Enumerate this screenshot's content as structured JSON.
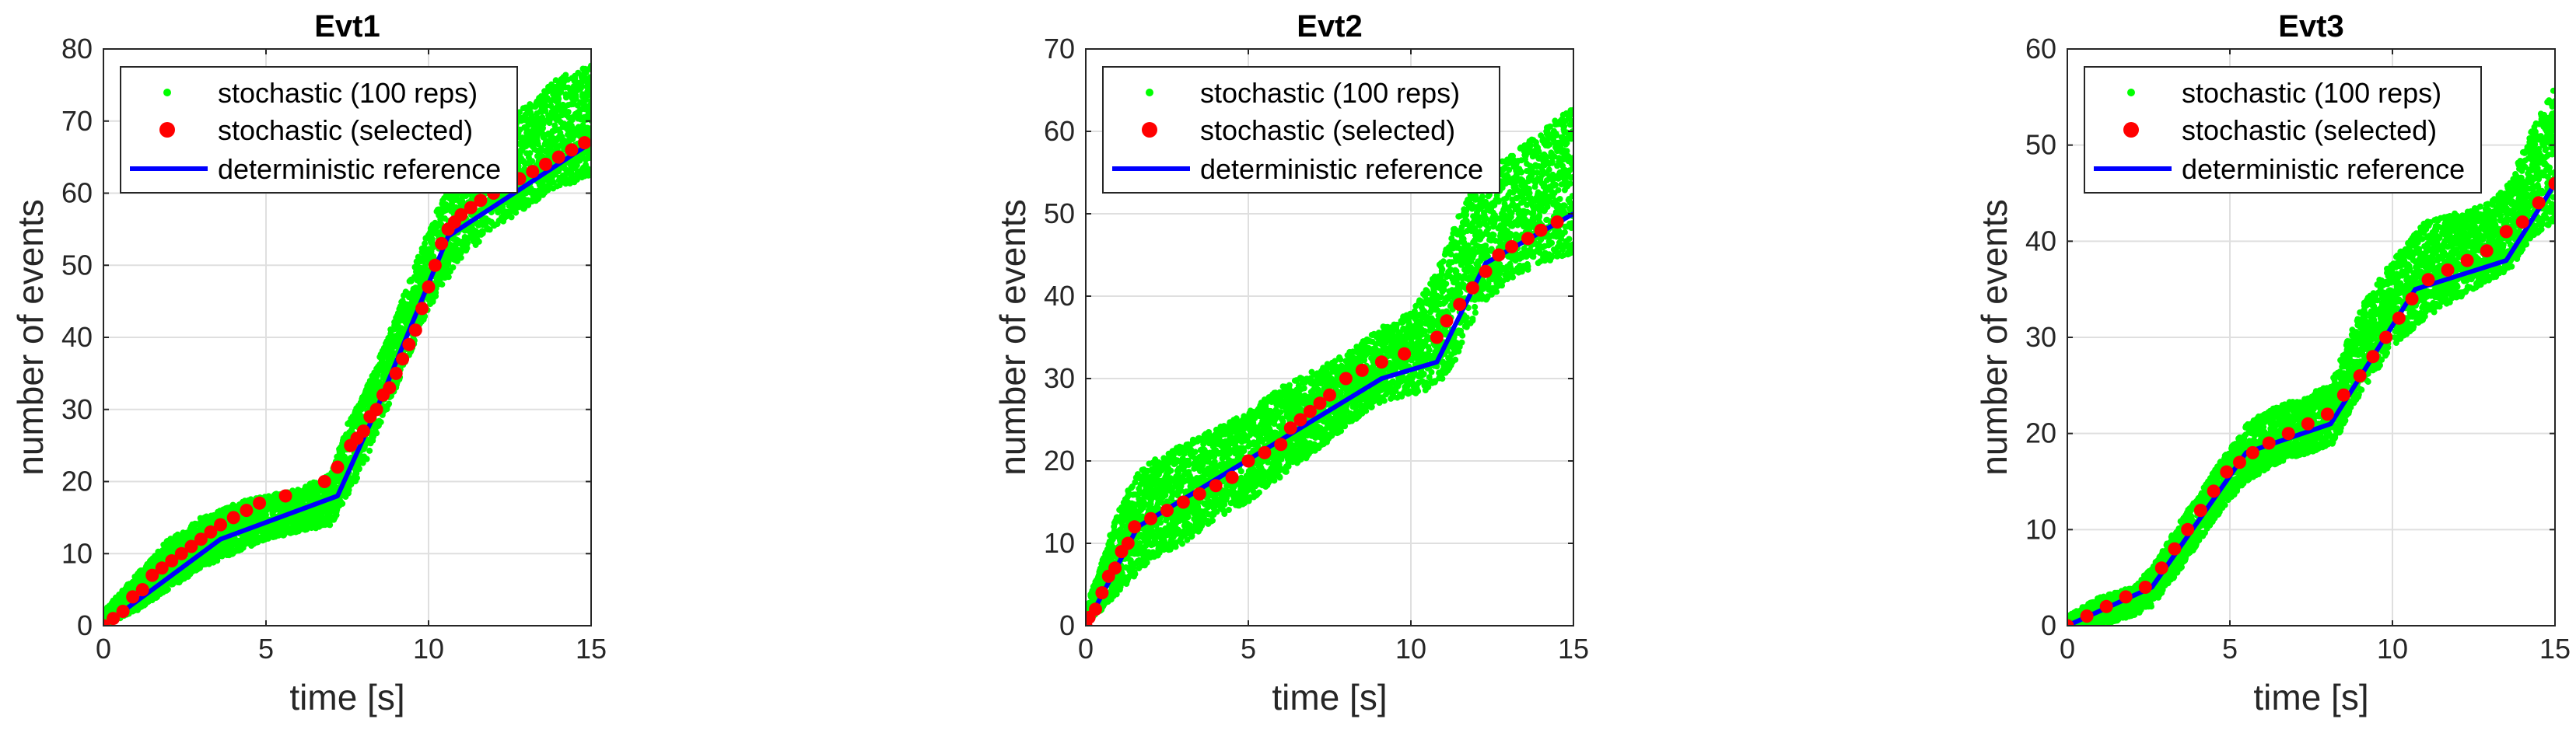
{
  "chart_data": [
    {
      "type": "scatter",
      "title": "Evt1",
      "xlabel": "time [s]",
      "ylabel": "number of events",
      "xlim": [
        0,
        15
      ],
      "ylim": [
        0,
        80
      ],
      "xticks": [
        0,
        5,
        10,
        15
      ],
      "yticks": [
        0,
        10,
        20,
        30,
        40,
        50,
        60,
        70,
        80
      ],
      "grid": true,
      "legend_position": "top-left",
      "legend": [
        "stochastic (100 reps)",
        "stochastic (selected)",
        "deterministic reference"
      ],
      "series": [
        {
          "name": "stochastic (100 reps)",
          "kind": "band",
          "color": "#00ff00",
          "x": [
            0,
            1,
            2,
            3,
            4,
            5,
            6,
            7,
            7.5,
            8,
            9,
            10,
            11,
            12,
            13,
            14,
            15
          ],
          "lower": [
            0,
            2,
            5,
            8,
            10,
            12,
            13,
            14,
            18,
            22,
            33,
            44,
            51,
            55,
            58,
            61,
            62
          ],
          "upper": [
            2,
            7,
            12,
            15,
            17,
            18,
            19,
            21,
            28,
            32,
            43,
            55,
            65,
            70,
            72,
            76,
            78
          ]
        },
        {
          "name": "stochastic (selected)",
          "kind": "markers",
          "color": "#ff0000",
          "x": [
            0,
            0.3,
            0.6,
            0.9,
            1.2,
            1.5,
            1.8,
            2.1,
            2.4,
            2.7,
            3.0,
            3.3,
            3.6,
            4.0,
            4.4,
            4.8,
            5.6,
            6.8,
            7.2,
            7.6,
            7.8,
            8.0,
            8.2,
            8.4,
            8.6,
            8.8,
            9.0,
            9.2,
            9.4,
            9.6,
            9.8,
            10.0,
            10.2,
            10.4,
            10.6,
            10.8,
            11.0,
            11.3,
            11.6,
            12.0,
            12.4,
            12.8,
            13.2,
            13.6,
            14.0,
            14.4,
            14.8
          ],
          "y": [
            0,
            1,
            2,
            4,
            5,
            7,
            8,
            9,
            10,
            11,
            12,
            13,
            14,
            15,
            16,
            17,
            18,
            20,
            22,
            25,
            26,
            27,
            29,
            30,
            32,
            33,
            35,
            37,
            39,
            41,
            44,
            47,
            50,
            53,
            55,
            56,
            57,
            58,
            59,
            60,
            61,
            62,
            63,
            64,
            65,
            66,
            67
          ]
        },
        {
          "name": "deterministic reference",
          "kind": "line",
          "color": "#0000ff",
          "x": [
            0,
            3.6,
            7.2,
            8.4,
            10.6,
            15
          ],
          "y": [
            0,
            12,
            18,
            30,
            54,
            67
          ]
        }
      ]
    },
    {
      "type": "scatter",
      "title": "Evt2",
      "xlabel": "time [s]",
      "ylabel": "number of events",
      "xlim": [
        0,
        15
      ],
      "ylim": [
        0,
        70
      ],
      "xticks": [
        0,
        5,
        10,
        15
      ],
      "yticks": [
        0,
        10,
        20,
        30,
        40,
        50,
        60,
        70
      ],
      "grid": true,
      "legend_position": "top-left",
      "legend": [
        "stochastic (100 reps)",
        "stochastic (selected)",
        "deterministic reference"
      ],
      "series": [
        {
          "name": "stochastic (100 reps)",
          "kind": "band",
          "color": "#00ff00",
          "x": [
            0,
            0.5,
            1,
            1.5,
            2,
            3,
            4,
            5,
            6,
            7,
            8,
            9,
            10,
            10.8,
            11.5,
            12,
            13,
            14,
            15
          ],
          "lower": [
            0,
            2,
            4,
            6,
            8,
            10,
            13,
            15,
            18,
            21,
            24,
            27,
            28,
            29,
            33,
            38,
            42,
            44,
            45
          ],
          "upper": [
            2,
            8,
            14,
            18,
            20,
            22,
            24,
            26,
            29,
            31,
            33,
            36,
            38,
            43,
            50,
            54,
            57,
            60,
            63
          ]
        },
        {
          "name": "stochastic (selected)",
          "kind": "markers",
          "color": "#ff0000",
          "x": [
            0,
            0.1,
            0.3,
            0.5,
            0.7,
            0.9,
            1.1,
            1.3,
            1.5,
            2.0,
            2.5,
            3.0,
            3.5,
            4.0,
            4.5,
            5.0,
            5.5,
            6.0,
            6.3,
            6.6,
            6.9,
            7.2,
            7.5,
            8.0,
            8.5,
            9.1,
            9.8,
            10.8,
            11.1,
            11.5,
            11.9,
            12.3,
            12.7,
            13.1,
            13.6,
            14.0,
            14.5
          ],
          "y": [
            0,
            1,
            2,
            4,
            6,
            7,
            9,
            10,
            12,
            13,
            14,
            15,
            16,
            17,
            18,
            20,
            21,
            22,
            24,
            25,
            26,
            27,
            28,
            30,
            31,
            32,
            33,
            35,
            37,
            39,
            41,
            43,
            45,
            46,
            47,
            48,
            49
          ]
        },
        {
          "name": "deterministic reference",
          "kind": "line",
          "color": "#0000ff",
          "x": [
            0,
            1.6,
            9.1,
            10.8,
            12.3,
            15
          ],
          "y": [
            0,
            12,
            30,
            32,
            44,
            50
          ]
        }
      ]
    },
    {
      "type": "scatter",
      "title": "Evt3",
      "xlabel": "time [s]",
      "ylabel": "number of events",
      "xlim": [
        0,
        15
      ],
      "ylim": [
        0,
        60
      ],
      "xticks": [
        0,
        5,
        10,
        15
      ],
      "yticks": [
        0,
        10,
        20,
        30,
        40,
        50,
        60
      ],
      "grid": true,
      "legend_position": "top-left",
      "legend": [
        "stochastic (100 reps)",
        "stochastic (selected)",
        "deterministic reference"
      ],
      "series": [
        {
          "name": "stochastic (100 reps)",
          "kind": "band",
          "color": "#00ff00",
          "x": [
            0,
            1,
            2,
            2.6,
            3.5,
            4.5,
            5.5,
            6.5,
            7.5,
            8.2,
            9,
            10,
            11,
            12,
            13,
            13.6,
            14.2,
            15
          ],
          "lower": [
            0,
            0,
            1,
            2,
            6,
            11,
            15,
            17,
            18,
            19,
            24,
            29,
            32,
            34,
            36,
            37,
            40,
            42
          ],
          "upper": [
            1,
            3,
            4,
            6,
            11,
            16,
            21,
            23,
            24,
            26,
            33,
            38,
            42,
            43,
            44,
            46,
            51,
            56
          ]
        },
        {
          "name": "stochastic (selected)",
          "kind": "markers",
          "color": "#ff0000",
          "x": [
            0,
            0.6,
            1.2,
            1.8,
            2.4,
            2.9,
            3.3,
            3.7,
            4.1,
            4.5,
            4.9,
            5.3,
            5.7,
            6.2,
            6.8,
            7.4,
            8.0,
            8.5,
            9.0,
            9.4,
            9.8,
            10.2,
            10.6,
            11.1,
            11.7,
            12.3,
            12.9,
            13.5,
            14.0,
            14.5,
            15
          ],
          "y": [
            0,
            1,
            2,
            3,
            4,
            6,
            8,
            10,
            12,
            14,
            16,
            17,
            18,
            19,
            20,
            21,
            22,
            24,
            26,
            28,
            30,
            32,
            34,
            36,
            37,
            38,
            39,
            41,
            42,
            44,
            46
          ]
        },
        {
          "name": "deterministic reference",
          "kind": "line",
          "color": "#0000ff",
          "x": [
            0,
            2.6,
            5.5,
            8.1,
            10.7,
            13.5,
            15
          ],
          "y": [
            0,
            4,
            18,
            21,
            35,
            38,
            46
          ]
        }
      ]
    }
  ]
}
